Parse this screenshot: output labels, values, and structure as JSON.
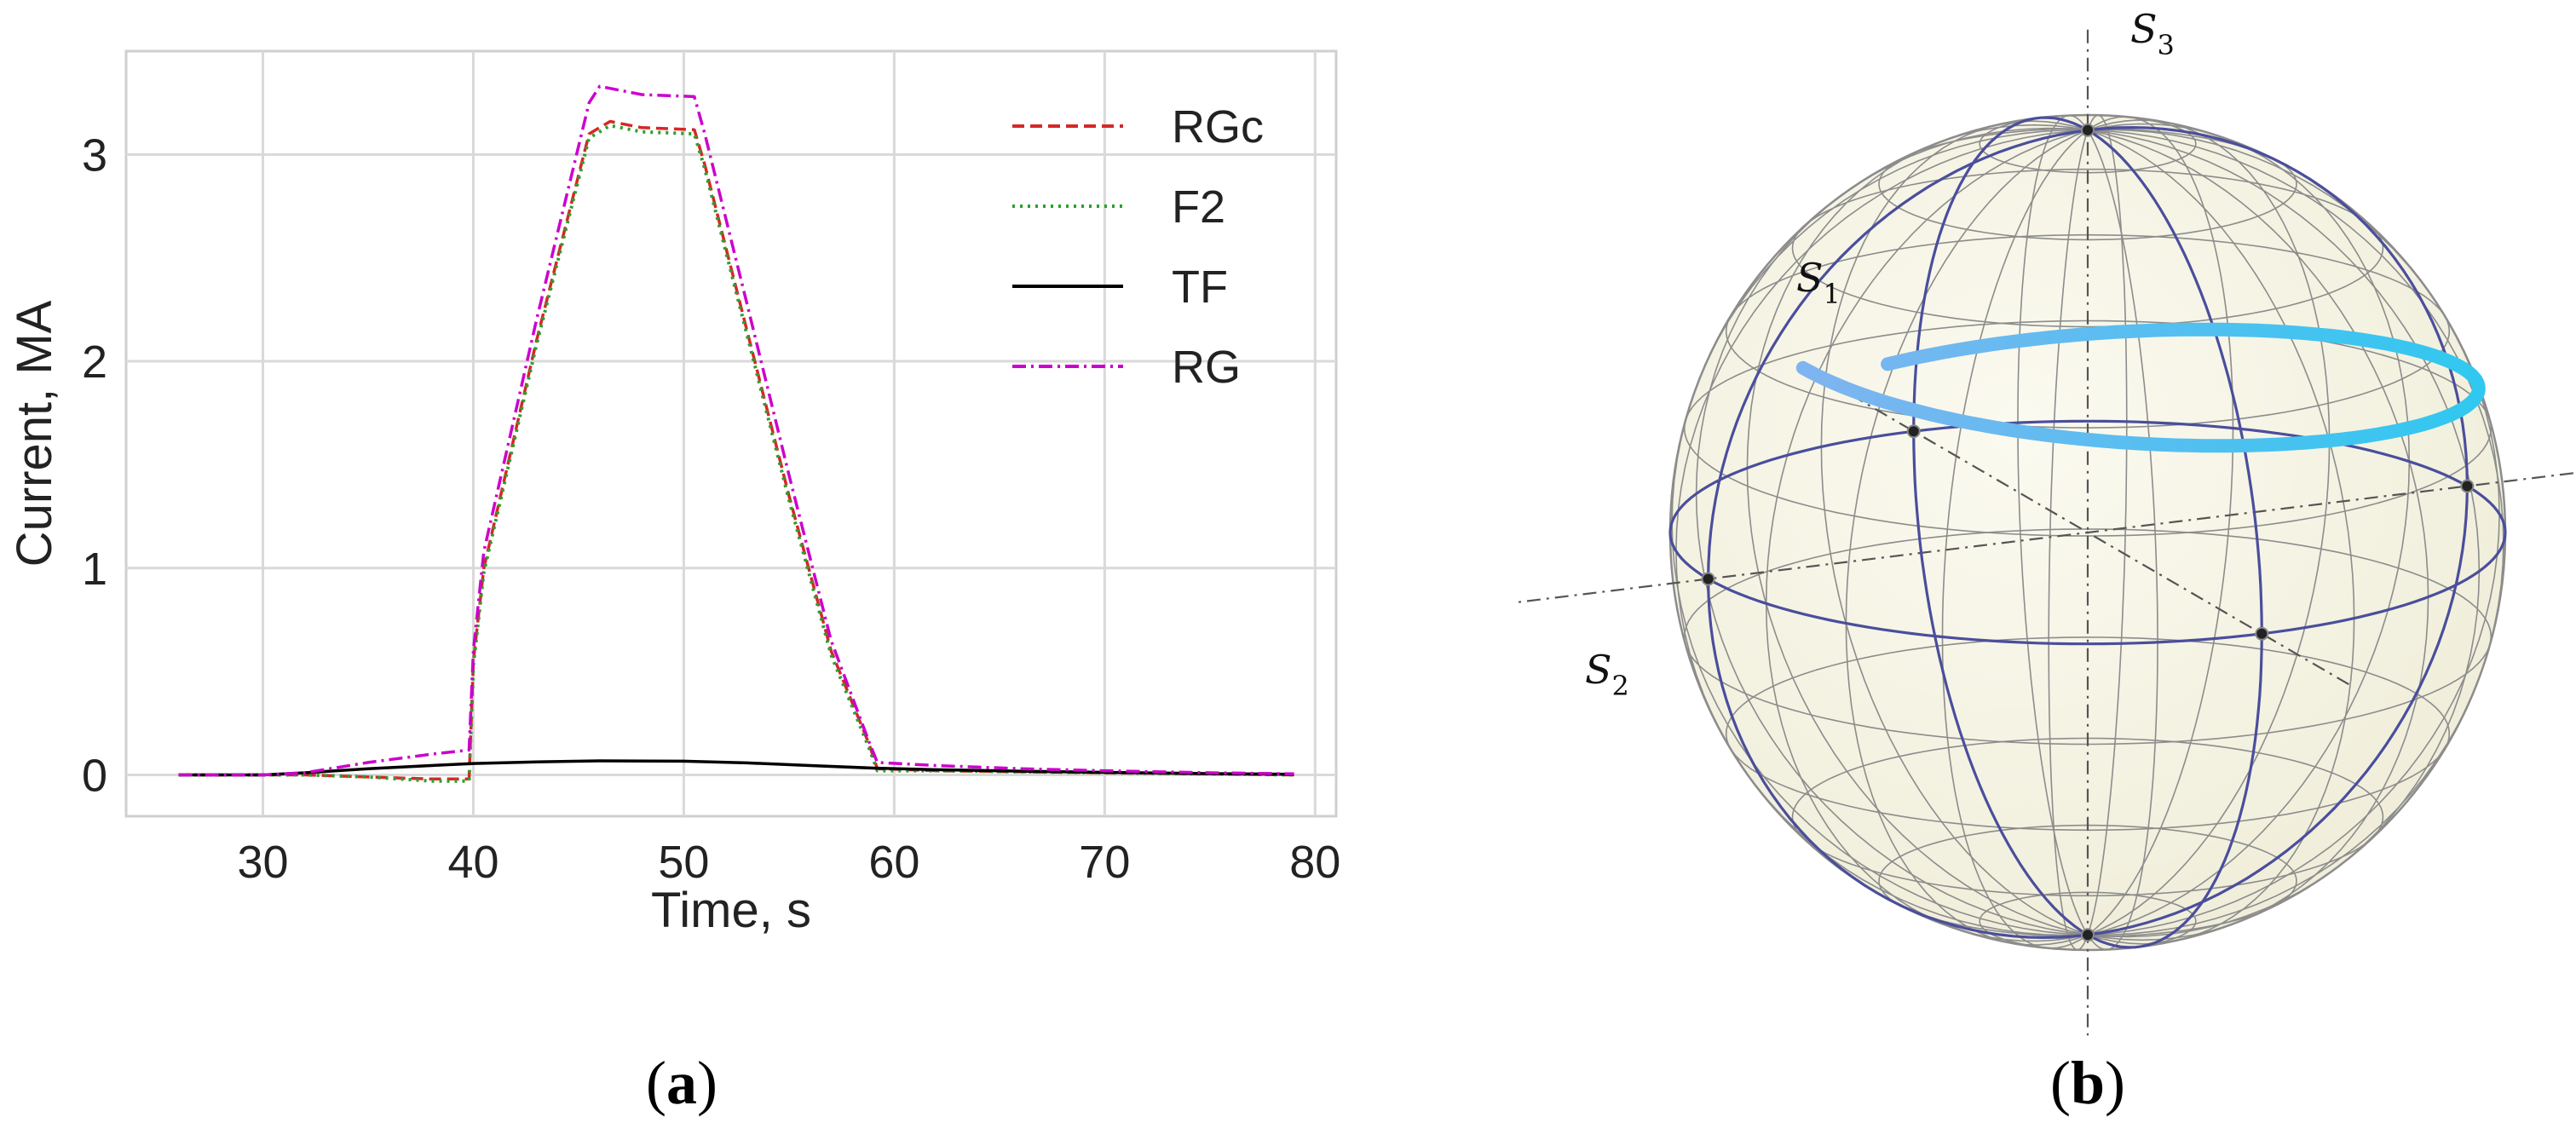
{
  "panel_labels": {
    "a": "a",
    "b": "b"
  },
  "chart_data": [
    {
      "type": "line",
      "xlabel": "Time, s",
      "ylabel": "Current, MA",
      "xlim": [
        23.5,
        81
      ],
      "ylim": [
        -0.2,
        3.5
      ],
      "xticks": [
        30,
        40,
        50,
        60,
        70,
        80
      ],
      "yticks": [
        0,
        1,
        2,
        3
      ],
      "xtick_labels": [
        "30",
        "40",
        "50",
        "60",
        "70",
        "80"
      ],
      "ytick_labels": [
        "0",
        "1",
        "2",
        "3"
      ],
      "grid": true,
      "legend_position": "top-right",
      "series": [
        {
          "name": "RGc",
          "color": "#d62728",
          "style": "dashed",
          "x": [
            26,
            30,
            32,
            35,
            38,
            39.8,
            40,
            40.5,
            43,
            45.5,
            46.5,
            48,
            50.5,
            51,
            53,
            55,
            57,
            58.8,
            59.2,
            62,
            66,
            70,
            75,
            79
          ],
          "y": [
            0,
            0,
            0,
            -0.01,
            -0.02,
            -0.02,
            0.55,
            1.0,
            2.1,
            3.1,
            3.16,
            3.13,
            3.12,
            2.95,
            2.15,
            1.35,
            0.6,
            0.15,
            0.03,
            0.02,
            0.015,
            0.01,
            0.005,
            0
          ]
        },
        {
          "name": "F2",
          "color": "#2ca02c",
          "style": "dotted",
          "x": [
            26,
            30,
            32,
            35,
            38,
            39.8,
            40,
            40.5,
            43,
            45.5,
            46.5,
            48,
            50.5,
            51,
            53,
            55,
            57,
            58.8,
            59.2,
            62,
            66,
            70,
            75,
            79
          ],
          "y": [
            0,
            0,
            0,
            -0.01,
            -0.03,
            -0.03,
            0.53,
            0.98,
            2.08,
            3.08,
            3.14,
            3.11,
            3.1,
            2.93,
            2.13,
            1.33,
            0.58,
            0.13,
            0.02,
            0.02,
            0.015,
            0.01,
            0.005,
            0
          ]
        },
        {
          "name": "TF",
          "color": "#000000",
          "style": "solid",
          "x": [
            26,
            30,
            32,
            35,
            38,
            40,
            43,
            46,
            50,
            53,
            56,
            59,
            62,
            66,
            70,
            75,
            79
          ],
          "y": [
            0,
            0,
            0.01,
            0.03,
            0.045,
            0.055,
            0.063,
            0.068,
            0.066,
            0.058,
            0.045,
            0.033,
            0.025,
            0.018,
            0.012,
            0.006,
            0.003
          ]
        },
        {
          "name": "RG",
          "color": "#cc00cc",
          "style": "dashdot",
          "x": [
            26,
            30,
            32,
            35,
            38,
            39.8,
            40,
            40.5,
            43,
            45.5,
            46,
            48,
            50.5,
            51,
            53,
            55,
            57,
            58.8,
            59.2,
            62,
            66,
            70,
            75,
            79
          ],
          "y": [
            0,
            0,
            0.01,
            0.06,
            0.1,
            0.12,
            0.6,
            1.08,
            2.2,
            3.25,
            3.33,
            3.29,
            3.28,
            3.1,
            2.28,
            1.45,
            0.65,
            0.16,
            0.06,
            0.045,
            0.03,
            0.02,
            0.01,
            0.005
          ]
        }
      ]
    },
    {
      "type": "poincare-sphere",
      "axis_labels": {
        "s1": "S",
        "s1_sub": "1",
        "s2": "S",
        "s2_sub": "2",
        "s3": "S",
        "s3_sub": "3"
      },
      "sphere_color": "#f5f3e4",
      "grid_color": "#8c8c8c",
      "great_circle_color": "#4a4e9c",
      "trajectory_color_start": "#7fb4f0",
      "trajectory_color_end": "#30c8f0"
    }
  ]
}
